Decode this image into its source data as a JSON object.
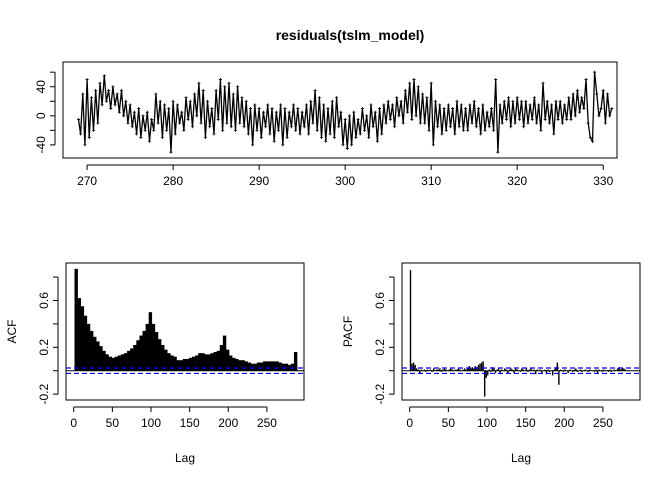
{
  "chart_data": [
    {
      "type": "line",
      "title": "residuals(tslm_model)",
      "xlabel": "",
      "ylabel": "",
      "xlim": [
        267.2,
        331.6
      ],
      "ylim": [
        -58,
        74
      ],
      "xticks": [
        "270",
        "280",
        "290",
        "300",
        "310",
        "320",
        "330"
      ],
      "yticks": [
        "-40",
        "0",
        "40"
      ],
      "x_start": 269,
      "x_step": 0.25,
      "values": [
        -5,
        -25,
        30,
        -40,
        50,
        -30,
        25,
        -20,
        35,
        -10,
        45,
        15,
        55,
        20,
        35,
        10,
        40,
        15,
        30,
        5,
        35,
        0,
        20,
        -10,
        15,
        -15,
        5,
        -25,
        10,
        -30,
        0,
        -20,
        5,
        -35,
        -5,
        -20,
        30,
        -10,
        20,
        -30,
        15,
        -20,
        10,
        -50,
        20,
        -25,
        15,
        -10,
        5,
        -20,
        25,
        -5,
        20,
        -15,
        30,
        0,
        45,
        -10,
        35,
        -30,
        20,
        -15,
        10,
        -25,
        35,
        -5,
        50,
        -20,
        40,
        -10,
        45,
        -15,
        30,
        -20,
        40,
        -10,
        25,
        -15,
        20,
        -25,
        10,
        -40,
        15,
        -20,
        10,
        -30,
        5,
        -15,
        15,
        -25,
        10,
        -35,
        5,
        -20,
        15,
        -40,
        10,
        -30,
        5,
        -15,
        15,
        -20,
        10,
        -25,
        5,
        -15,
        15,
        -25,
        20,
        -10,
        35,
        -20,
        25,
        -30,
        15,
        -35,
        10,
        -25,
        20,
        -30,
        25,
        -15,
        5,
        -40,
        -5,
        -45,
        0,
        -40,
        5,
        -30,
        -5,
        -25,
        10,
        -20,
        0,
        -30,
        15,
        -15,
        5,
        -35,
        10,
        -25,
        15,
        -10,
        20,
        -5,
        15,
        -15,
        25,
        0,
        20,
        -10,
        35,
        5,
        45,
        -5,
        50,
        0,
        40,
        -10,
        30,
        -10,
        25,
        -20,
        45,
        -40,
        20,
        -15,
        15,
        -25,
        10,
        -20,
        15,
        -15,
        10,
        -25,
        20,
        -15,
        15,
        -20,
        10,
        -20,
        15,
        -10,
        20,
        -15,
        10,
        -25,
        15,
        -20,
        5,
        -15,
        10,
        -20,
        50,
        -50,
        15,
        -10,
        20,
        -5,
        25,
        -15,
        20,
        -10,
        25,
        -5,
        20,
        -15,
        20,
        -10,
        15,
        -5,
        25,
        -10,
        15,
        -20,
        45,
        -5,
        20,
        -10,
        15,
        -25,
        20,
        -5,
        20,
        -10,
        15,
        -5,
        25,
        -5,
        30,
        0,
        35,
        5,
        25,
        10,
        50,
        -10,
        -30,
        -35,
        60,
        30,
        0,
        10,
        35,
        -10,
        30,
        0,
        10
      ]
    },
    {
      "type": "bar",
      "title": "",
      "xlabel": "Lag",
      "ylabel": "ACF",
      "xlim": [
        -10,
        298
      ],
      "ylim": [
        -0.25,
        0.92
      ],
      "xticks": [
        "0",
        "50",
        "100",
        "150",
        "200",
        "250"
      ],
      "yticks": [
        "-0.2",
        "0.2",
        "0.6"
      ],
      "lag_start": 1,
      "lag_step": 4,
      "confidence_bound": 0.023,
      "values": [
        0.87,
        0.62,
        0.55,
        0.47,
        0.4,
        0.34,
        0.29,
        0.25,
        0.21,
        0.17,
        0.14,
        0.12,
        0.11,
        0.12,
        0.13,
        0.14,
        0.15,
        0.17,
        0.19,
        0.22,
        0.26,
        0.3,
        0.34,
        0.4,
        0.5,
        0.4,
        0.33,
        0.27,
        0.22,
        0.18,
        0.15,
        0.13,
        0.12,
        0.09,
        0.09,
        0.1,
        0.1,
        0.11,
        0.12,
        0.13,
        0.15,
        0.15,
        0.14,
        0.14,
        0.15,
        0.16,
        0.17,
        0.22,
        0.3,
        0.18,
        0.13,
        0.11,
        0.1,
        0.09,
        0.09,
        0.08,
        0.07,
        0.06,
        0.06,
        0.07,
        0.07,
        0.08,
        0.08,
        0.08,
        0.08,
        0.08,
        0.07,
        0.06,
        0.06,
        0.05,
        0.06,
        0.16
      ]
    },
    {
      "type": "bar",
      "title": "",
      "xlabel": "Lag",
      "ylabel": "PACF",
      "xlim": [
        -10,
        298
      ],
      "ylim": [
        -0.25,
        0.92
      ],
      "xticks": [
        "0",
        "50",
        "100",
        "150",
        "200",
        "250"
      ],
      "yticks": [
        "-0.2",
        "0.2",
        "0.6"
      ],
      "lag_start": 1,
      "lag_step": 2,
      "confidence_bound": 0.023,
      "values": [
        0.86,
        0.06,
        0.07,
        0.05,
        0.02,
        0.01,
        -0.02,
        0.01,
        0.0,
        0.01,
        -0.01,
        0.01,
        0.0,
        0.01,
        -0.01,
        0.02,
        0.0,
        0.01,
        0.01,
        0.02,
        -0.01,
        0.01,
        0.02,
        0.01,
        0.0,
        0.01,
        0.02,
        0.01,
        0.0,
        0.01,
        0.01,
        0.02,
        0.01,
        0.0,
        0.01,
        0.02,
        0.01,
        0.02,
        0.04,
        0.02,
        0.03,
        0.02,
        0.04,
        0.03,
        0.05,
        0.06,
        0.07,
        0.08,
        -0.22,
        -0.06,
        -0.04,
        0.01,
        -0.01,
        0.03,
        0.02,
        -0.02,
        0.01,
        0.02,
        -0.03,
        0.01,
        0.0,
        0.02,
        0.01,
        -0.02,
        0.01,
        0.02,
        0.01,
        -0.02,
        0.02,
        0.01,
        0.0,
        -0.01,
        0.02,
        0.01,
        0.0,
        0.02,
        -0.01,
        0.01,
        0.02,
        0.0,
        0.01,
        -0.03,
        0.01,
        0.0,
        0.01,
        -0.02,
        0.0,
        0.01,
        -0.03,
        0.01,
        -0.01,
        0.0,
        -0.04,
        0.01,
        0.03,
        0.07,
        -0.12,
        0.01,
        0.0,
        -0.01,
        0.01,
        0.0,
        -0.02,
        0.01,
        0.0,
        -0.01,
        0.01,
        0.02,
        -0.01,
        0.0,
        0.01,
        -0.01,
        0.0,
        0.01,
        0.0,
        -0.01,
        0.01,
        0.0,
        0.0,
        -0.01,
        0.01,
        -0.02,
        0.01,
        0.0,
        -0.01,
        0.01,
        0.0,
        0.0,
        -0.01,
        0.01,
        -0.01,
        0.0,
        0.01,
        0.0,
        0.02,
        0.03,
        0.01,
        0.02,
        0.02,
        0.01
      ]
    }
  ]
}
